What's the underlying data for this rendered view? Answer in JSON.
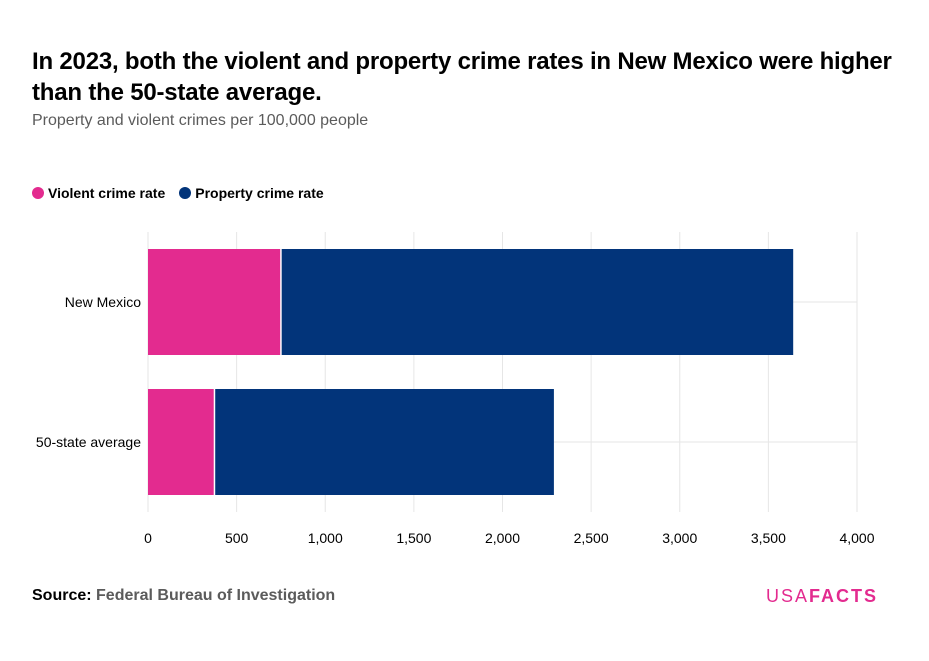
{
  "title": "In 2023, both the violent and property crime rates in New Mexico were higher than the 50-state average.",
  "subtitle": "Property and violent crimes per 100,000 people",
  "legend": [
    {
      "label": "Violent crime rate",
      "color": "#e32b8f"
    },
    {
      "label": "Property crime rate",
      "color": "#02347a"
    }
  ],
  "footer": {
    "source_label": "Source:",
    "source_value": "Federal Bureau of Investigation",
    "logo_usa": "USA",
    "logo_facts": "FACTS"
  },
  "chart_data": {
    "type": "bar",
    "orientation": "horizontal",
    "stacked": true,
    "categories": [
      "New Mexico",
      "50-state average"
    ],
    "series": [
      {
        "name": "Violent crime rate",
        "color": "#e32b8f",
        "values": [
          750,
          375
        ]
      },
      {
        "name": "Property crime rate",
        "color": "#02347a",
        "values": [
          2890,
          1915
        ]
      }
    ],
    "xlim": [
      0,
      4000
    ],
    "xticks": [
      0,
      500,
      1000,
      1500,
      2000,
      2500,
      3000,
      3500,
      4000
    ],
    "xtick_labels": [
      "0",
      "500",
      "1,000",
      "1,500",
      "2,000",
      "2,500",
      "3,000",
      "3,500",
      "4,000"
    ],
    "grid": true,
    "legend_position": "top-left"
  }
}
